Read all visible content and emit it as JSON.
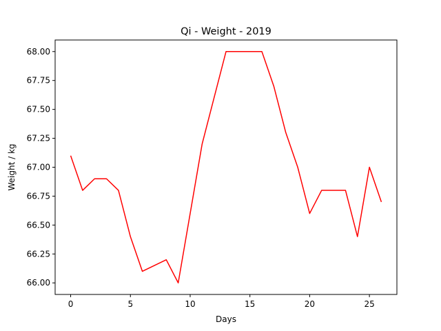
{
  "chart_data": {
    "type": "line",
    "title": "Qi - Weight - 2019",
    "xlabel": "Days",
    "ylabel": "Weight / kg",
    "x": [
      0,
      1,
      2,
      3,
      4,
      5,
      6,
      7,
      8,
      9,
      10,
      11,
      12,
      13,
      14,
      15,
      16,
      17,
      18,
      19,
      20,
      21,
      22,
      23,
      24,
      25,
      26
    ],
    "series": [
      {
        "color": "#ff0000",
        "values": [
          67.1,
          66.8,
          66.9,
          66.9,
          66.8,
          66.4,
          66.1,
          66.15,
          66.2,
          66.0,
          66.6,
          67.2,
          67.6,
          68.0,
          68.0,
          68.0,
          68.0,
          67.7,
          67.3,
          67.0,
          66.6,
          66.8,
          66.8,
          66.8,
          66.4,
          67.0,
          66.7
        ]
      }
    ],
    "xlim": [
      -1.3,
      27.3
    ],
    "ylim": [
      65.9,
      68.1
    ],
    "xticks": [
      0,
      5,
      10,
      15,
      20,
      25
    ],
    "xtick_labels": [
      "0",
      "5",
      "10",
      "15",
      "20",
      "25"
    ],
    "yticks": [
      66.0,
      66.25,
      66.5,
      66.75,
      67.0,
      67.25,
      67.5,
      67.75,
      68.0
    ],
    "ytick_labels": [
      "66.00",
      "66.25",
      "66.50",
      "66.75",
      "67.00",
      "67.25",
      "67.50",
      "67.75",
      "68.00"
    ],
    "grid": false,
    "legend": "none"
  }
}
